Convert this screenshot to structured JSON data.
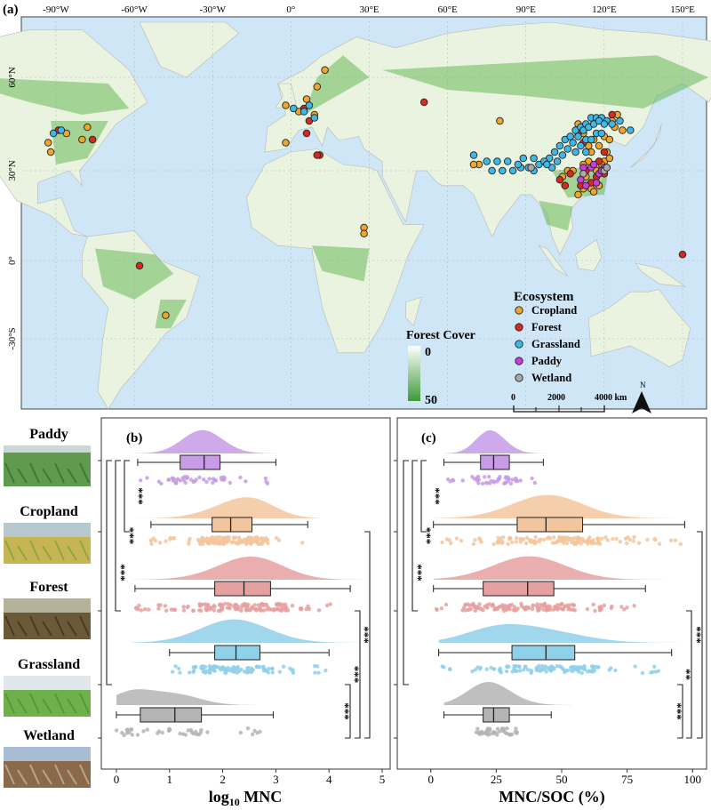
{
  "panels": {
    "a": "(a)",
    "b": "(b)",
    "c": "(c)"
  },
  "map": {
    "lon_labels": [
      "-90°W",
      "-60°W",
      "-30°W",
      "0°",
      "30°E",
      "60°E",
      "90°E",
      "120°E",
      "150°E"
    ],
    "lon_values": [
      -90,
      -60,
      -30,
      0,
      30,
      60,
      90,
      120,
      150
    ],
    "lat_labels": [
      "60°N",
      "30°N",
      "0°",
      "-30°S"
    ],
    "lat_values": [
      60,
      30,
      0,
      -30
    ],
    "forest_cover": {
      "title": "Forest Cover",
      "min": "0",
      "max": "50",
      "low_color": "#ffffff",
      "high_color": "#3f9a3a"
    },
    "scale_bar": {
      "labels": [
        "0",
        "2000",
        "4000 km"
      ]
    },
    "north": "N",
    "legend": {
      "title": "Ecosystem",
      "items": [
        {
          "label": "Cropland",
          "color": "#f0a52b"
        },
        {
          "label": "Forest",
          "color": "#d62a1f"
        },
        {
          "label": "Grassland",
          "color": "#3fb8e6"
        },
        {
          "label": "Paddy",
          "color": "#c83ce0"
        },
        {
          "label": "Wetland",
          "color": "#a9a9a9"
        }
      ]
    },
    "colors": {
      "ocean": "#cfe6f6",
      "land": "#e9f3df",
      "forest": "#6bb85a",
      "border": "#b9b9b9"
    },
    "sites": {
      "Cropland": [
        [
          -86,
          42
        ],
        [
          -78,
          44
        ],
        [
          -92,
          36
        ],
        [
          -93,
          39
        ],
        [
          -80,
          40
        ],
        [
          -2,
          51
        ],
        [
          -2,
          39
        ],
        [
          6,
          53
        ],
        [
          10,
          57
        ],
        [
          13,
          62
        ],
        [
          9,
          48
        ],
        [
          3,
          49
        ],
        [
          28,
          11
        ],
        [
          28,
          9
        ],
        [
          -48,
          -21
        ],
        [
          80,
          46
        ],
        [
          72,
          32
        ],
        [
          70,
          32
        ],
        [
          110,
          45
        ],
        [
          112,
          42
        ],
        [
          115,
          36
        ],
        [
          114,
          33
        ],
        [
          118,
          38
        ],
        [
          120,
          41
        ],
        [
          117,
          30
        ],
        [
          113,
          28
        ],
        [
          112,
          24
        ],
        [
          115,
          24
        ],
        [
          120,
          33
        ],
        [
          122,
          40
        ],
        [
          124,
          44
        ],
        [
          127,
          43
        ],
        [
          125,
          48
        ],
        [
          112,
          32
        ],
        [
          106,
          30
        ],
        [
          104,
          28
        ],
        [
          118,
          25
        ],
        [
          116,
          23
        ],
        [
          110,
          22
        ],
        [
          108,
          30
        ],
        [
          116,
          40
        ],
        [
          121,
          36
        ],
        [
          123,
          46
        ],
        [
          114,
          38
        ],
        [
          119,
          32
        ],
        [
          122,
          34
        ]
      ],
      "Forest": [
        [
          -89,
          43
        ],
        [
          -76,
          40
        ],
        [
          5,
          50
        ],
        [
          7,
          46
        ],
        [
          6,
          42
        ],
        [
          11,
          35
        ],
        [
          10,
          35
        ],
        [
          51,
          52
        ],
        [
          -58,
          -2
        ],
        [
          150,
          2
        ],
        [
          110,
          42
        ],
        [
          112,
          39
        ],
        [
          118,
          33
        ],
        [
          113,
          30
        ],
        [
          107,
          29
        ],
        [
          103,
          27
        ],
        [
          115,
          26
        ],
        [
          117,
          28
        ],
        [
          120,
          36
        ],
        [
          123,
          48
        ],
        [
          111,
          25
        ],
        [
          105,
          25
        ],
        [
          120,
          29
        ]
      ],
      "Grassland": [
        [
          -116,
          46
        ],
        [
          -88,
          43
        ],
        [
          -91,
          42
        ],
        [
          1,
          50
        ],
        [
          5,
          49
        ],
        [
          7,
          51
        ],
        [
          9,
          47
        ],
        [
          70,
          35
        ],
        [
          77,
          30
        ],
        [
          81,
          30
        ],
        [
          85,
          30
        ],
        [
          88,
          31
        ],
        [
          91,
          31
        ],
        [
          95,
          32
        ],
        [
          99,
          34
        ],
        [
          101,
          36
        ],
        [
          103,
          38
        ],
        [
          105,
          40
        ],
        [
          107,
          41
        ],
        [
          109,
          43
        ],
        [
          111,
          44
        ],
        [
          113,
          45
        ],
        [
          115,
          47
        ],
        [
          117,
          47
        ],
        [
          119,
          47
        ],
        [
          121,
          46
        ],
        [
          123,
          45
        ],
        [
          126,
          46
        ],
        [
          130,
          43
        ],
        [
          100,
          31
        ],
        [
          102,
          33
        ],
        [
          104,
          35
        ],
        [
          106,
          37
        ],
        [
          108,
          39
        ],
        [
          110,
          41
        ],
        [
          112,
          43
        ],
        [
          114,
          44
        ],
        [
          116,
          45
        ],
        [
          118,
          46
        ],
        [
          120,
          45
        ],
        [
          113,
          40
        ],
        [
          115,
          40
        ],
        [
          117,
          42
        ],
        [
          119,
          42
        ],
        [
          109,
          36
        ],
        [
          111,
          38
        ],
        [
          97,
          33
        ],
        [
          93,
          34
        ],
        [
          89,
          34
        ],
        [
          83,
          33
        ],
        [
          79,
          33
        ],
        [
          75,
          33
        ],
        [
          93,
          30
        ],
        [
          98,
          32
        ],
        [
          87,
          32
        ],
        [
          113,
          36
        ]
      ],
      "Paddy": [
        [
          111,
          27
        ],
        [
          112,
          31
        ],
        [
          115,
          31
        ],
        [
          118,
          29
        ],
        [
          120,
          31
        ],
        [
          119,
          30
        ],
        [
          113,
          25
        ],
        [
          117,
          26
        ],
        [
          116,
          32
        ]
      ],
      "Wetland": [
        [
          120,
          30
        ],
        [
          112,
          29
        ],
        [
          92,
          31
        ],
        [
          121,
          31
        ]
      ]
    }
  },
  "chart_data": [
    {
      "type": "box_raincloud",
      "panel": "(b)",
      "xlabel": "log₁₀ MNC",
      "xlim": [
        -0.2,
        5
      ],
      "xticks": [
        0,
        1,
        2,
        3,
        4,
        5
      ],
      "categories": [
        "Paddy",
        "Cropland",
        "Forest",
        "Grassland",
        "Wetland"
      ],
      "series": [
        {
          "name": "Paddy",
          "color": "#c79be6",
          "whisker_low": 0.4,
          "q1": 1.2,
          "median": 1.65,
          "q3": 1.95,
          "whisker_high": 3.0,
          "density_min": 0.3,
          "density_max": 3.0,
          "density_peak": 1.6
        },
        {
          "name": "Cropland",
          "color": "#f3c59c",
          "whisker_low": 0.65,
          "q1": 1.8,
          "median": 2.15,
          "q3": 2.55,
          "whisker_high": 3.6,
          "density_min": 0.4,
          "density_max": 3.8,
          "density_peak": 2.6
        },
        {
          "name": "Forest",
          "color": "#e6a0a0",
          "whisker_low": 0.35,
          "q1": 1.85,
          "median": 2.4,
          "q3": 2.9,
          "whisker_high": 4.4,
          "density_min": 0.3,
          "density_max": 4.6,
          "density_peak": 2.6
        },
        {
          "name": "Grassland",
          "color": "#8fd0ea",
          "whisker_low": 1.0,
          "q1": 1.85,
          "median": 2.25,
          "q3": 2.7,
          "whisker_high": 4.0,
          "density_min": 0.3,
          "density_max": 4.9,
          "density_peak": 2.2
        },
        {
          "name": "Wetland",
          "color": "#b4b4b4",
          "whisker_low": 0.0,
          "q1": 0.45,
          "median": 1.1,
          "q3": 1.6,
          "whisker_high": 2.95,
          "density_min": 0.0,
          "density_max": 3.0,
          "density_peak": 0.3
        }
      ],
      "significance": [
        {
          "from": "Paddy",
          "to": "Cropland",
          "label": "***"
        },
        {
          "from": "Paddy",
          "to": "Forest",
          "label": "***"
        },
        {
          "from": "Paddy",
          "to": "Grassland",
          "label": "***"
        },
        {
          "from": "Grassland",
          "to": "Wetland",
          "label": "***"
        },
        {
          "from": "Forest",
          "to": "Wetland",
          "label": "***"
        },
        {
          "from": "Cropland",
          "to": "Wetland",
          "label": "***"
        }
      ]
    },
    {
      "type": "box_raincloud",
      "panel": "(c)",
      "xlabel": "MNC/SOC (%)",
      "xlim": [
        -5,
        105
      ],
      "xticks": [
        0,
        25,
        50,
        75,
        100
      ],
      "categories": [
        "Paddy",
        "Cropland",
        "Forest",
        "Grassland",
        "Wetland"
      ],
      "series": [
        {
          "name": "Paddy",
          "color": "#c79be6",
          "whisker_low": 5,
          "q1": 19,
          "median": 24,
          "q3": 30,
          "whisker_high": 43,
          "density_min": 5,
          "density_max": 44,
          "density_peak": 22
        },
        {
          "name": "Cropland",
          "color": "#f3c59c",
          "whisker_low": 1,
          "q1": 33,
          "median": 44,
          "q3": 58,
          "whisker_high": 97,
          "density_min": 1,
          "density_max": 98,
          "density_peak": 45
        },
        {
          "name": "Forest",
          "color": "#e6a0a0",
          "whisker_low": 1,
          "q1": 20,
          "median": 37,
          "q3": 47,
          "whisker_high": 82,
          "density_min": 1,
          "density_max": 100,
          "density_peak": 38
        },
        {
          "name": "Grassland",
          "color": "#8fd0ea",
          "whisker_low": 3,
          "q1": 31,
          "median": 44,
          "q3": 55,
          "whisker_high": 92,
          "density_min": 3,
          "density_max": 100,
          "density_peak": 25
        },
        {
          "name": "Wetland",
          "color": "#b4b4b4",
          "whisker_low": 5,
          "q1": 20,
          "median": 24,
          "q3": 30,
          "whisker_high": 46,
          "density_min": 5,
          "density_max": 63,
          "density_peak": 21
        }
      ],
      "significance": [
        {
          "from": "Paddy",
          "to": "Cropland",
          "label": "***"
        },
        {
          "from": "Paddy",
          "to": "Forest",
          "label": "***"
        },
        {
          "from": "Paddy",
          "to": "Grassland",
          "label": "***"
        },
        {
          "from": "Grassland",
          "to": "Wetland",
          "label": "***"
        },
        {
          "from": "Forest",
          "to": "Wetland",
          "label": "**"
        },
        {
          "from": "Cropland",
          "to": "Wetland",
          "label": "***"
        }
      ]
    }
  ],
  "photos": [
    {
      "label": "Paddy",
      "sky": "#c9d8d4",
      "ground": "#5f9a4f",
      "detail": "#2f6a30"
    },
    {
      "label": "Cropland",
      "sky": "#b8c8cf",
      "ground": "#c6b653",
      "detail": "#7e9a3c"
    },
    {
      "label": "Forest",
      "sky": "#b5b29a",
      "ground": "#6a5a38",
      "detail": "#3c2c1c"
    },
    {
      "label": "Grassland",
      "sky": "#dfe7ea",
      "ground": "#6fb04a",
      "detail": "#4b8d35"
    },
    {
      "label": "Wetland",
      "sky": "#a8bdd4",
      "ground": "#8a6a4a",
      "detail": "#c8bfa6"
    }
  ]
}
